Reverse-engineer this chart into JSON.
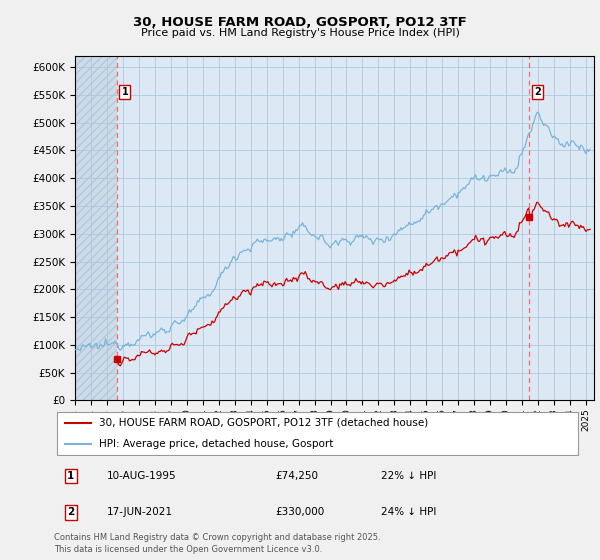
{
  "title1": "30, HOUSE FARM ROAD, GOSPORT, PO12 3TF",
  "title2": "Price paid vs. HM Land Registry's House Price Index (HPI)",
  "ylim": [
    0,
    620000
  ],
  "yticks": [
    0,
    50000,
    100000,
    150000,
    200000,
    250000,
    300000,
    350000,
    400000,
    450000,
    500000,
    550000,
    600000
  ],
  "xlim_start": 1993.0,
  "xlim_end": 2025.5,
  "hpi_color": "#7ab4d8",
  "price_color": "#cc0000",
  "plot_bg": "#dce9f5",
  "grid_color": "#aec8de",
  "transaction1_date": 1995.608,
  "transaction1_price": 74250,
  "transaction2_date": 2021.458,
  "transaction2_price": 330000,
  "legend_label_price": "30, HOUSE FARM ROAD, GOSPORT, PO12 3TF (detached house)",
  "legend_label_hpi": "HPI: Average price, detached house, Gosport",
  "annotation1_date": "10-AUG-1995",
  "annotation1_price": "£74,250",
  "annotation1_hpi": "22% ↓ HPI",
  "annotation2_date": "17-JUN-2021",
  "annotation2_price": "£330,000",
  "annotation2_hpi": "24% ↓ HPI",
  "footer": "Contains HM Land Registry data © Crown copyright and database right 2025.\nThis data is licensed under the Open Government Licence v3.0."
}
